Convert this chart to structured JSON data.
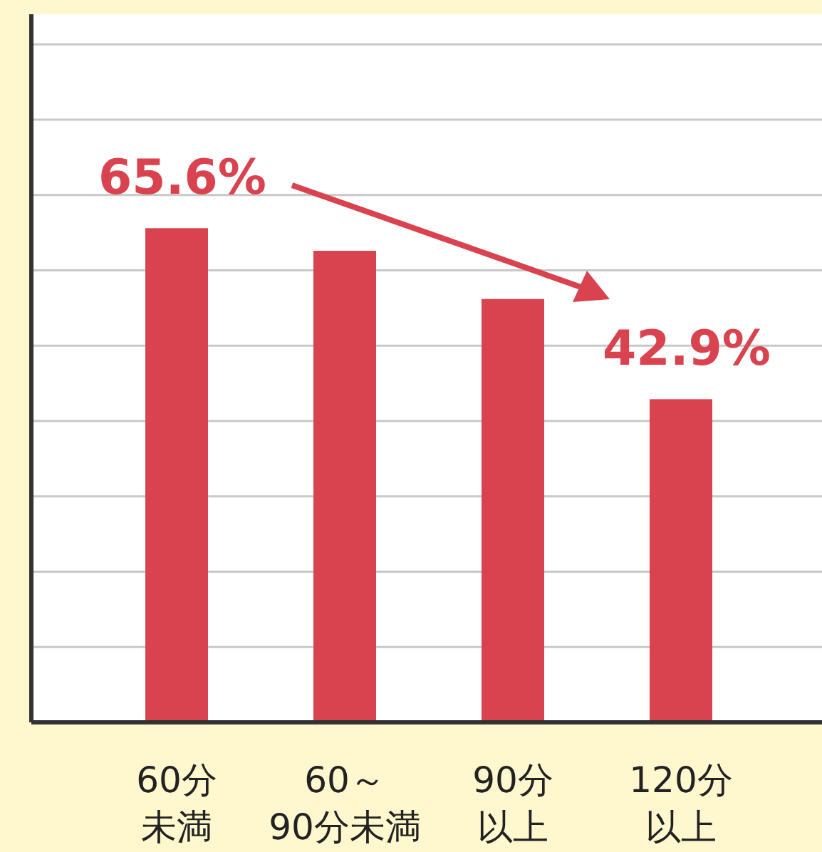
{
  "chart_data": {
    "type": "bar",
    "categories": [
      "60分未満",
      "60～90分未満",
      "90分以上",
      "120分以上"
    ],
    "values": [
      65.6,
      62.6,
      56.2,
      42.9
    ],
    "value_labels": [
      "65.6%",
      null,
      null,
      "42.9%"
    ],
    "ylim": [
      0,
      94
    ],
    "yticks": [
      {
        "value": 10,
        "label": null
      },
      {
        "value": 20,
        "label": null
      },
      {
        "value": 30,
        "label": null
      },
      {
        "value": 40,
        "label": null
      },
      {
        "value": 50,
        "label": null
      },
      {
        "value": 60,
        "label": null
      },
      {
        "value": 70,
        "label": null
      },
      {
        "value": 80,
        "label": null
      },
      {
        "value": 90,
        "label": null
      }
    ],
    "color": "#d9434f",
    "grid": "y"
  }
}
